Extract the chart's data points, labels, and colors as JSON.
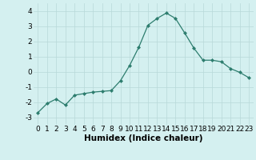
{
  "x": [
    0,
    1,
    2,
    3,
    4,
    5,
    6,
    7,
    8,
    9,
    10,
    11,
    12,
    13,
    14,
    15,
    16,
    17,
    18,
    19,
    20,
    21,
    22,
    23
  ],
  "y": [
    -2.7,
    -2.1,
    -1.8,
    -2.2,
    -1.55,
    -1.45,
    -1.35,
    -1.3,
    -1.25,
    -0.6,
    0.4,
    1.6,
    3.05,
    3.5,
    3.85,
    3.5,
    2.55,
    1.55,
    0.75,
    0.75,
    0.65,
    0.2,
    -0.05,
    -0.4
  ],
  "xlabel": "Humidex (Indice chaleur)",
  "ylim": [
    -3.5,
    4.5
  ],
  "xlim": [
    -0.5,
    23.5
  ],
  "yticks": [
    -3,
    -2,
    -1,
    0,
    1,
    2,
    3,
    4
  ],
  "xticks": [
    0,
    1,
    2,
    3,
    4,
    5,
    6,
    7,
    8,
    9,
    10,
    11,
    12,
    13,
    14,
    15,
    16,
    17,
    18,
    19,
    20,
    21,
    22,
    23
  ],
  "line_color": "#2d7d6e",
  "marker": "D",
  "marker_size": 2.0,
  "bg_color": "#d4f0f0",
  "grid_color": "#b8d8d8",
  "xlabel_fontsize": 7.5,
  "tick_fontsize": 6.5
}
